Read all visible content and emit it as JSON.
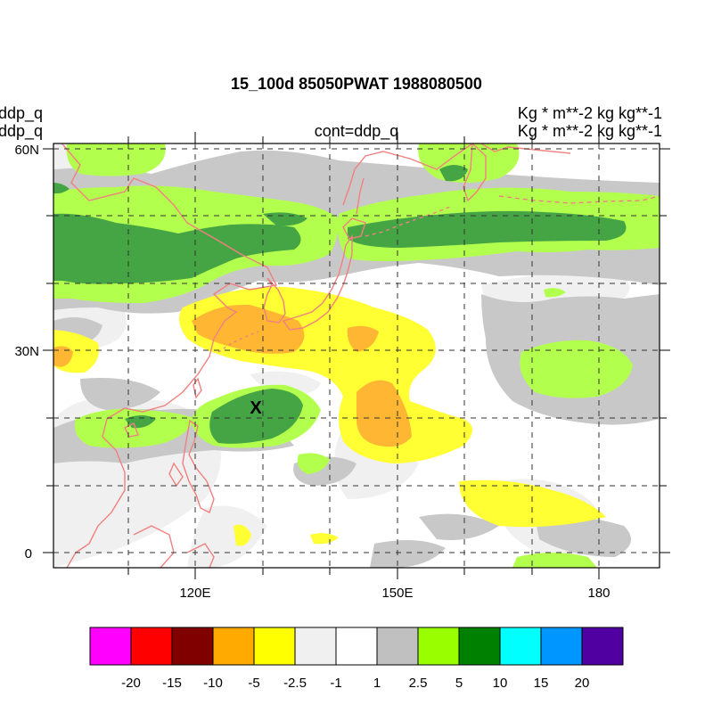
{
  "title": "15_100d 85050PWAT  1988080500",
  "left_labels": [
    "ddp_q",
    "ddp_q"
  ],
  "right_labels": [
    "Kg  * m**-2 kg kg**-1",
    "Kg  * m**-2 kg kg**-1"
  ],
  "center_label": "cont=ddp_q",
  "map": {
    "lat_range": [
      -2,
      60
    ],
    "lon_range": [
      100,
      190
    ],
    "lat_ticks": [
      {
        "value": 60,
        "label": "60N"
      },
      {
        "value": 30,
        "label": "30N"
      },
      {
        "value": 0,
        "label": "0"
      }
    ],
    "lon_ticks": [
      {
        "value": 120,
        "label": "120E"
      },
      {
        "value": 150,
        "label": "150E"
      },
      {
        "value": 180,
        "label": "180"
      }
    ],
    "marker": {
      "label": "X",
      "lon": 129,
      "lat": 21.5
    },
    "coast_color": "#f08080"
  },
  "colorbar": {
    "colors": [
      "#ff00ff",
      "#ff0000",
      "#800000",
      "#ffaa00",
      "#ffff00",
      "#f0f0f0",
      "#ffffff",
      "#c0c0c0",
      "#99ff00",
      "#008000",
      "#00ffff",
      "#0096ff",
      "#5000a0"
    ],
    "labels": [
      "-20",
      "-15",
      "-10",
      "-5",
      "-2.5",
      "-1",
      "1",
      "2.5",
      "5",
      "10",
      "15",
      "20"
    ]
  }
}
